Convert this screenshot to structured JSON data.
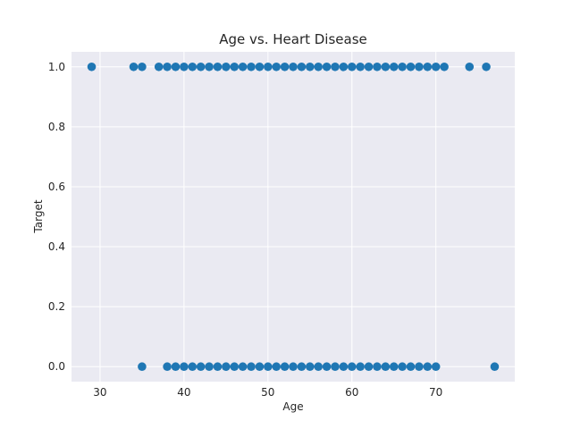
{
  "chart_data": {
    "type": "scatter",
    "title": "Age vs. Heart Disease",
    "xlabel": "Age",
    "ylabel": "Target",
    "xlim": [
      26.6,
      79.4
    ],
    "ylim": [
      -0.05,
      1.05
    ],
    "xticks": [
      30,
      40,
      50,
      60,
      70
    ],
    "yticks": [
      0.0,
      0.2,
      0.4,
      0.6,
      0.8,
      1.0
    ],
    "ytick_labels": [
      "0.0",
      "0.2",
      "0.4",
      "0.6",
      "0.8",
      "1.0"
    ],
    "grid": true,
    "marker_color": "#1f77b4",
    "series": [
      {
        "points": [
          {
            "x": 29,
            "y": 1
          },
          {
            "x": 34,
            "y": 1
          },
          {
            "x": 35,
            "y": 1
          },
          {
            "x": 37,
            "y": 1
          },
          {
            "x": 38,
            "y": 1
          },
          {
            "x": 39,
            "y": 1
          },
          {
            "x": 40,
            "y": 1
          },
          {
            "x": 41,
            "y": 1
          },
          {
            "x": 42,
            "y": 1
          },
          {
            "x": 43,
            "y": 1
          },
          {
            "x": 44,
            "y": 1
          },
          {
            "x": 45,
            "y": 1
          },
          {
            "x": 46,
            "y": 1
          },
          {
            "x": 47,
            "y": 1
          },
          {
            "x": 48,
            "y": 1
          },
          {
            "x": 49,
            "y": 1
          },
          {
            "x": 50,
            "y": 1
          },
          {
            "x": 51,
            "y": 1
          },
          {
            "x": 52,
            "y": 1
          },
          {
            "x": 53,
            "y": 1
          },
          {
            "x": 54,
            "y": 1
          },
          {
            "x": 55,
            "y": 1
          },
          {
            "x": 56,
            "y": 1
          },
          {
            "x": 57,
            "y": 1
          },
          {
            "x": 58,
            "y": 1
          },
          {
            "x": 59,
            "y": 1
          },
          {
            "x": 60,
            "y": 1
          },
          {
            "x": 61,
            "y": 1
          },
          {
            "x": 62,
            "y": 1
          },
          {
            "x": 63,
            "y": 1
          },
          {
            "x": 64,
            "y": 1
          },
          {
            "x": 65,
            "y": 1
          },
          {
            "x": 66,
            "y": 1
          },
          {
            "x": 67,
            "y": 1
          },
          {
            "x": 68,
            "y": 1
          },
          {
            "x": 69,
            "y": 1
          },
          {
            "x": 70,
            "y": 1
          },
          {
            "x": 71,
            "y": 1
          },
          {
            "x": 74,
            "y": 1
          },
          {
            "x": 76,
            "y": 1
          },
          {
            "x": 35,
            "y": 0
          },
          {
            "x": 38,
            "y": 0
          },
          {
            "x": 39,
            "y": 0
          },
          {
            "x": 40,
            "y": 0
          },
          {
            "x": 41,
            "y": 0
          },
          {
            "x": 42,
            "y": 0
          },
          {
            "x": 43,
            "y": 0
          },
          {
            "x": 44,
            "y": 0
          },
          {
            "x": 45,
            "y": 0
          },
          {
            "x": 46,
            "y": 0
          },
          {
            "x": 47,
            "y": 0
          },
          {
            "x": 48,
            "y": 0
          },
          {
            "x": 49,
            "y": 0
          },
          {
            "x": 50,
            "y": 0
          },
          {
            "x": 51,
            "y": 0
          },
          {
            "x": 52,
            "y": 0
          },
          {
            "x": 53,
            "y": 0
          },
          {
            "x": 54,
            "y": 0
          },
          {
            "x": 55,
            "y": 0
          },
          {
            "x": 56,
            "y": 0
          },
          {
            "x": 57,
            "y": 0
          },
          {
            "x": 58,
            "y": 0
          },
          {
            "x": 59,
            "y": 0
          },
          {
            "x": 60,
            "y": 0
          },
          {
            "x": 61,
            "y": 0
          },
          {
            "x": 62,
            "y": 0
          },
          {
            "x": 63,
            "y": 0
          },
          {
            "x": 64,
            "y": 0
          },
          {
            "x": 65,
            "y": 0
          },
          {
            "x": 66,
            "y": 0
          },
          {
            "x": 67,
            "y": 0
          },
          {
            "x": 68,
            "y": 0
          },
          {
            "x": 69,
            "y": 0
          },
          {
            "x": 70,
            "y": 0
          },
          {
            "x": 77,
            "y": 0
          }
        ]
      }
    ]
  }
}
